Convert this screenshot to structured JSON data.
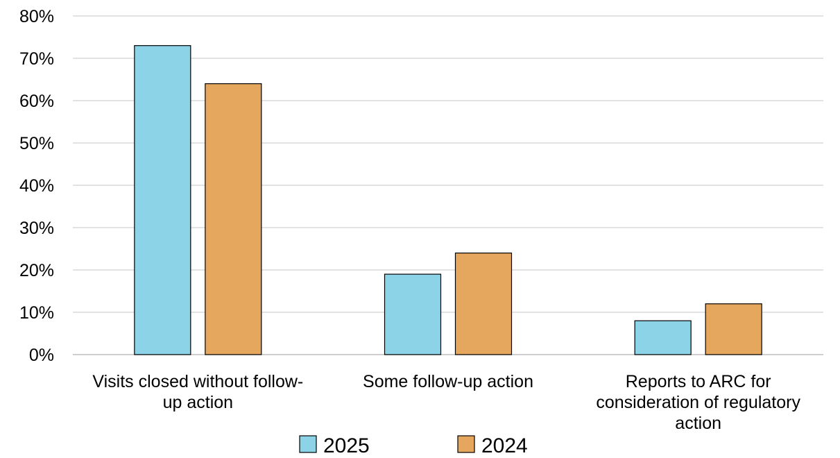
{
  "chart_data": {
    "type": "bar",
    "title": "",
    "xlabel": "",
    "ylabel": "",
    "categories": [
      [
        "Visits closed without follow-",
        "up action"
      ],
      [
        "Some follow-up action"
      ],
      [
        "Reports to ARC for",
        "consideration of regulatory",
        "action"
      ]
    ],
    "series": [
      {
        "name": "2025",
        "values": [
          73,
          19,
          8
        ],
        "color": "#8cd3e8"
      },
      {
        "name": "2024",
        "values": [
          64,
          24,
          12
        ],
        "color": "#e5a75e"
      }
    ],
    "ylim": [
      0,
      80
    ],
    "yticks": [
      0,
      10,
      20,
      30,
      40,
      50,
      60,
      70,
      80
    ],
    "ytick_suffix": "%",
    "grid": true,
    "legend_position": "bottom"
  }
}
